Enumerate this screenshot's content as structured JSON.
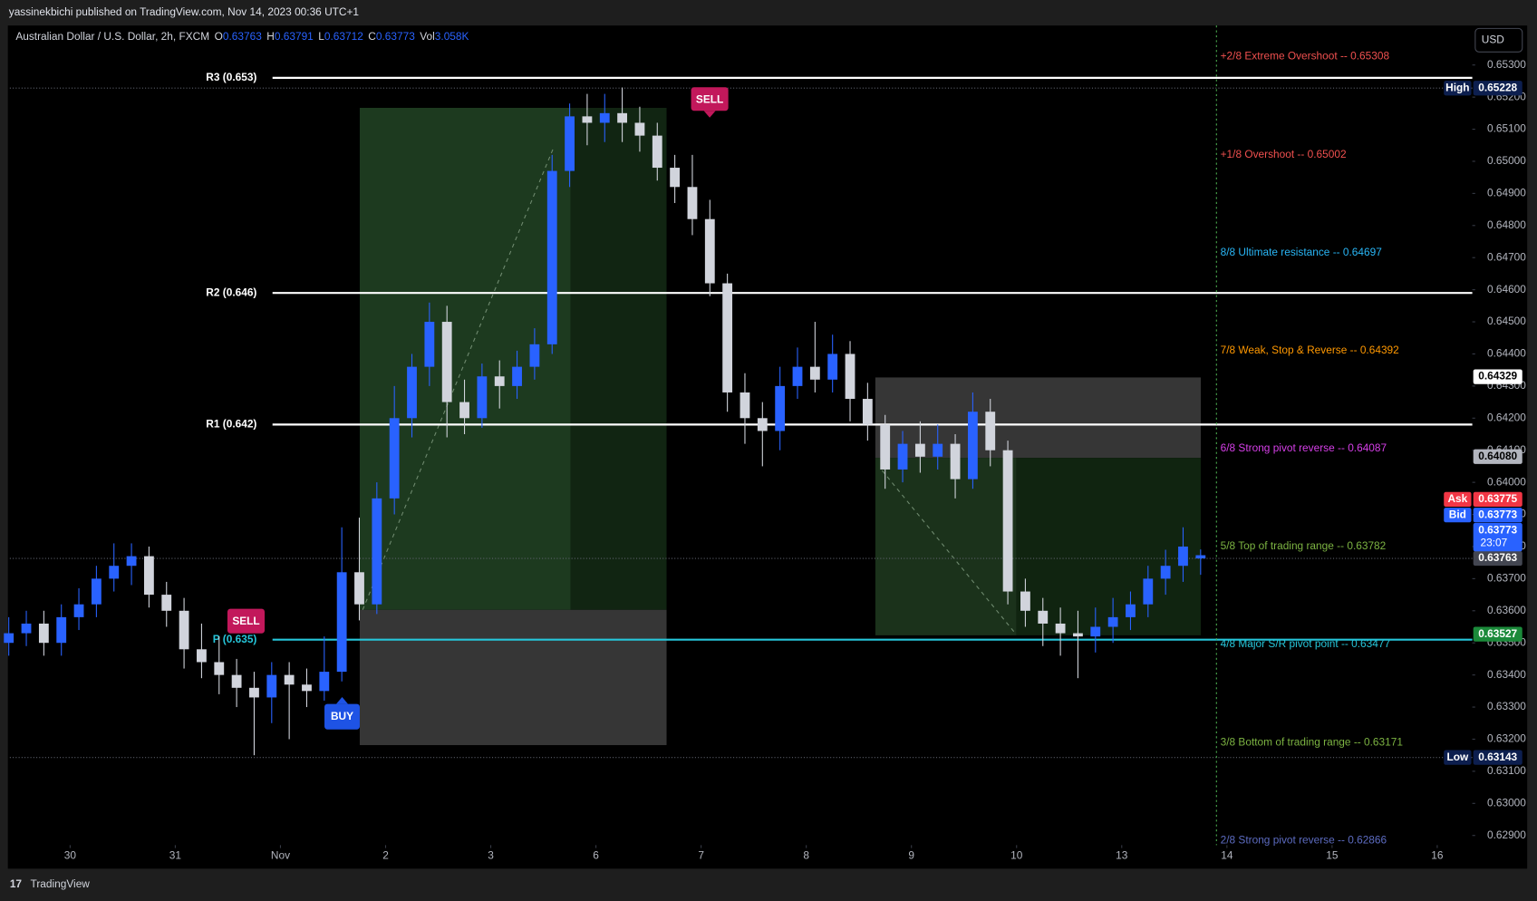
{
  "header": {
    "text": "yassinekbichi published on TradingView.com, Nov 14, 2023 00:36 UTC+1"
  },
  "footer": {
    "brand": "TradingView"
  },
  "chart_data": {
    "type": "candlestick",
    "symbol": "Australian Dollar / U.S. Dollar, 2h, FXCM",
    "legend": [
      {
        "key": "O",
        "value": 0.63763
      },
      {
        "key": "H",
        "value": 0.63791
      },
      {
        "key": "L",
        "value": 0.63712
      },
      {
        "key": "C",
        "value": 0.63773
      }
    ],
    "volume": {
      "key": "Vol",
      "label": "3.058K"
    },
    "currency": "USD",
    "up_color": "#2962ff",
    "down_color": "#d1d4dc",
    "grid": false,
    "xlim": [
      -8,
      160
    ],
    "xticks": [
      {
        "value": 0,
        "label": "30"
      },
      {
        "value": 12,
        "label": "31"
      },
      {
        "value": 24,
        "label": "Nov"
      },
      {
        "value": 36,
        "label": "2"
      },
      {
        "value": 48,
        "label": "3"
      },
      {
        "value": 60,
        "label": "6"
      },
      {
        "value": 72,
        "label": "7"
      },
      {
        "value": 84,
        "label": "8"
      },
      {
        "value": 96,
        "label": "9"
      },
      {
        "value": 108,
        "label": "10"
      },
      {
        "value": 120,
        "label": "13"
      },
      {
        "value": 132,
        "label": "14"
      },
      {
        "value": 144,
        "label": "15"
      },
      {
        "value": 156,
        "label": "16"
      }
    ],
    "ylim": [
      0.6287,
      0.6542
    ],
    "yticks": [
      {
        "value": 0.629,
        "label": "0.62900"
      },
      {
        "value": 0.63,
        "label": "0.63000"
      },
      {
        "value": 0.631,
        "label": "0.63100"
      },
      {
        "value": 0.632,
        "label": "0.63200"
      },
      {
        "value": 0.633,
        "label": "0.63300"
      },
      {
        "value": 0.634,
        "label": "0.63400"
      },
      {
        "value": 0.635,
        "label": "0.63500"
      },
      {
        "value": 0.636,
        "label": "0.63600"
      },
      {
        "value": 0.637,
        "label": "0.63700"
      },
      {
        "value": 0.638,
        "label": "0.63800"
      },
      {
        "value": 0.639,
        "label": "0.63900"
      },
      {
        "value": 0.64,
        "label": "0.64000"
      },
      {
        "value": 0.641,
        "label": "0.64100"
      },
      {
        "value": 0.642,
        "label": "0.64200"
      },
      {
        "value": 0.643,
        "label": "0.64300"
      },
      {
        "value": 0.644,
        "label": "0.64400"
      },
      {
        "value": 0.645,
        "label": "0.64500"
      },
      {
        "value": 0.646,
        "label": "0.64600"
      },
      {
        "value": 0.647,
        "label": "0.64700"
      },
      {
        "value": 0.648,
        "label": "0.64800"
      },
      {
        "value": 0.649,
        "label": "0.64900"
      },
      {
        "value": 0.65,
        "label": "0.65000"
      },
      {
        "value": 0.651,
        "label": "0.65100"
      },
      {
        "value": 0.652,
        "label": "0.65200"
      },
      {
        "value": 0.653,
        "label": "0.65300"
      }
    ],
    "x": [
      -7,
      -5,
      -3,
      -1,
      1,
      3,
      5,
      7,
      9,
      11,
      13,
      15,
      17,
      19,
      21,
      23,
      25,
      27,
      29,
      31,
      33,
      35,
      37,
      39,
      41,
      43,
      45,
      47,
      49,
      51,
      53,
      55,
      57,
      59,
      61,
      63,
      65,
      67,
      69,
      71,
      73,
      75,
      77,
      79,
      81,
      83,
      85,
      87,
      89,
      91,
      93,
      95,
      97,
      99,
      101,
      103,
      105,
      107,
      109,
      111,
      113,
      115,
      117,
      119,
      121,
      123,
      125,
      127,
      129
    ],
    "ohlc": [
      [
        0.635,
        0.6358,
        0.6346,
        0.6353
      ],
      [
        0.6353,
        0.636,
        0.6349,
        0.6356
      ],
      [
        0.6356,
        0.636,
        0.6346,
        0.635
      ],
      [
        0.635,
        0.6362,
        0.6346,
        0.6358
      ],
      [
        0.6358,
        0.6367,
        0.6354,
        0.6362
      ],
      [
        0.6362,
        0.6374,
        0.6358,
        0.637
      ],
      [
        0.637,
        0.6381,
        0.6366,
        0.6374
      ],
      [
        0.6374,
        0.6381,
        0.6368,
        0.6377
      ],
      [
        0.6377,
        0.638,
        0.6361,
        0.6365
      ],
      [
        0.6365,
        0.6369,
        0.6355,
        0.636
      ],
      [
        0.636,
        0.6364,
        0.6342,
        0.6348
      ],
      [
        0.6348,
        0.6356,
        0.6339,
        0.6344
      ],
      [
        0.6344,
        0.6352,
        0.6334,
        0.634
      ],
      [
        0.634,
        0.6345,
        0.633,
        0.6336
      ],
      [
        0.6336,
        0.6341,
        0.6315,
        0.6333
      ],
      [
        0.6333,
        0.6344,
        0.6325,
        0.634
      ],
      [
        0.634,
        0.6344,
        0.632,
        0.6337
      ],
      [
        0.6337,
        0.6342,
        0.633,
        0.6335
      ],
      [
        0.6335,
        0.6352,
        0.6332,
        0.6341
      ],
      [
        0.6341,
        0.6386,
        0.6338,
        0.6372
      ],
      [
        0.6372,
        0.6389,
        0.6357,
        0.6362
      ],
      [
        0.6362,
        0.64,
        0.6359,
        0.6395
      ],
      [
        0.6395,
        0.643,
        0.639,
        0.642
      ],
      [
        0.642,
        0.644,
        0.6414,
        0.6436
      ],
      [
        0.6436,
        0.6456,
        0.643,
        0.645
      ],
      [
        0.645,
        0.6455,
        0.6414,
        0.6425
      ],
      [
        0.6425,
        0.6432,
        0.6415,
        0.642
      ],
      [
        0.642,
        0.6437,
        0.6417,
        0.6433
      ],
      [
        0.6433,
        0.6438,
        0.6423,
        0.643
      ],
      [
        0.643,
        0.6441,
        0.6426,
        0.6436
      ],
      [
        0.6436,
        0.6448,
        0.6432,
        0.6443
      ],
      [
        0.6443,
        0.6502,
        0.644,
        0.6497
      ],
      [
        0.6497,
        0.6518,
        0.6492,
        0.6514
      ],
      [
        0.6514,
        0.6521,
        0.6505,
        0.6512
      ],
      [
        0.6512,
        0.6521,
        0.6506,
        0.6515
      ],
      [
        0.6515,
        0.6523,
        0.6506,
        0.6512
      ],
      [
        0.6512,
        0.6517,
        0.6503,
        0.6508
      ],
      [
        0.6508,
        0.6512,
        0.6494,
        0.6498
      ],
      [
        0.6498,
        0.6502,
        0.6487,
        0.6492
      ],
      [
        0.6492,
        0.6502,
        0.6477,
        0.6482
      ],
      [
        0.6482,
        0.6488,
        0.6458,
        0.6462
      ],
      [
        0.6462,
        0.6465,
        0.6422,
        0.6428
      ],
      [
        0.6428,
        0.6434,
        0.6412,
        0.642
      ],
      [
        0.642,
        0.6425,
        0.6405,
        0.6416
      ],
      [
        0.6416,
        0.6436,
        0.641,
        0.643
      ],
      [
        0.643,
        0.6442,
        0.6426,
        0.6436
      ],
      [
        0.6436,
        0.645,
        0.6428,
        0.6432
      ],
      [
        0.6432,
        0.6446,
        0.6428,
        0.644
      ],
      [
        0.644,
        0.6444,
        0.6419,
        0.6426
      ],
      [
        0.6426,
        0.6431,
        0.6413,
        0.6418
      ],
      [
        0.6418,
        0.6421,
        0.6398,
        0.6404
      ],
      [
        0.6404,
        0.6416,
        0.64,
        0.6412
      ],
      [
        0.6412,
        0.6419,
        0.6403,
        0.6408
      ],
      [
        0.6408,
        0.6418,
        0.6404,
        0.6412
      ],
      [
        0.6412,
        0.6415,
        0.6395,
        0.6401
      ],
      [
        0.6401,
        0.6428,
        0.6398,
        0.6422
      ],
      [
        0.6422,
        0.6426,
        0.6405,
        0.641
      ],
      [
        0.641,
        0.6413,
        0.6362,
        0.6366
      ],
      [
        0.6366,
        0.637,
        0.6355,
        0.636
      ],
      [
        0.636,
        0.6364,
        0.6349,
        0.6356
      ],
      [
        0.6356,
        0.6361,
        0.6346,
        0.6353
      ],
      [
        0.6353,
        0.636,
        0.6339,
        0.6352
      ],
      [
        0.6352,
        0.6361,
        0.6347,
        0.6355
      ],
      [
        0.6355,
        0.6364,
        0.635,
        0.6358
      ],
      [
        0.6358,
        0.6366,
        0.6354,
        0.6362
      ],
      [
        0.6362,
        0.6374,
        0.6358,
        0.637
      ],
      [
        0.637,
        0.6379,
        0.6365,
        0.6374
      ],
      [
        0.6374,
        0.6386,
        0.6369,
        0.638
      ],
      [
        0.63763,
        0.63791,
        0.63712,
        0.63773
      ]
    ],
    "levels": [
      {
        "name": "R3 (0.653)",
        "value": 0.6526,
        "color": "#ffffff"
      },
      {
        "name": "R2 (0.646)",
        "value": 0.6459,
        "color": "#ffffff"
      },
      {
        "name": "R1 (0.642)",
        "value": 0.6418,
        "color": "#ffffff"
      },
      {
        "name": "P (0.635)",
        "value": 0.6351,
        "color": "#26c6da"
      }
    ],
    "murrey": [
      {
        "text": "+2/8 Extreme Overshoot --  0.65308",
        "value": 0.65308,
        "color": "#f0504f"
      },
      {
        "text": "+1/8 Overshoot --  0.65002",
        "value": 0.65002,
        "color": "#f0504f"
      },
      {
        "text": "8/8 Ultimate resistance --  0.64697",
        "value": 0.64697,
        "color": "#29b6f6"
      },
      {
        "text": "7/8 Weak, Stop & Reverse --  0.64392",
        "value": 0.64392,
        "color": "#ff9800"
      },
      {
        "text": "6/8 Strong pivot reverse --  0.64087",
        "value": 0.64087,
        "color": "#d63fe8"
      },
      {
        "text": "5/8 Top of trading range --  0.63782",
        "value": 0.63782,
        "color": "#7cb342"
      },
      {
        "text": "4/8 Major S/R pivot point --  0.63477",
        "value": 0.63477,
        "color": "#26c6da"
      },
      {
        "text": "3/8 Bottom of trading range --  0.63171",
        "value": 0.63171,
        "color": "#7cb342"
      },
      {
        "text": "2/8 Strong pivot reverse --  0.62866",
        "value": 0.62866,
        "color": "#5c6bc0"
      }
    ],
    "badges": [
      {
        "tag": "High",
        "value": 0.65228,
        "label": "0.65228",
        "bg": "#0d1f4f",
        "fg": "#ffffff"
      },
      {
        "value": 0.64329,
        "label": "0.64329",
        "bg": "#ffffff",
        "fg": "#000000"
      },
      {
        "value": 0.6408,
        "label": "0.64080",
        "bg": "#b2b5be",
        "fg": "#000000"
      },
      {
        "value": 0.63763,
        "label": "0.63763",
        "bg": "#434651",
        "fg": "#ffffff"
      },
      {
        "value": 0.63527,
        "label": "0.63527",
        "bg": "#1b8a3a",
        "fg": "#ffffff"
      },
      {
        "tag": "Low",
        "value": 0.63143,
        "label": "0.63143",
        "bg": "#0d1f4f",
        "fg": "#ffffff"
      }
    ],
    "quote": {
      "ask": {
        "tag": "Ask",
        "value": 0.63775,
        "label": "0.63775",
        "bg": "#f23645"
      },
      "bid": {
        "tag": "Bid",
        "value": 0.63773,
        "label": "0.63773",
        "bg": "#2962ff"
      },
      "last": {
        "value": 0.63773,
        "label": "0.63773",
        "countdown": "23:07",
        "bg": "#2962ff"
      }
    },
    "signals": [
      {
        "text": "SELL"
      },
      {
        "text": "SELL"
      },
      {
        "text": "BUY"
      }
    ]
  }
}
